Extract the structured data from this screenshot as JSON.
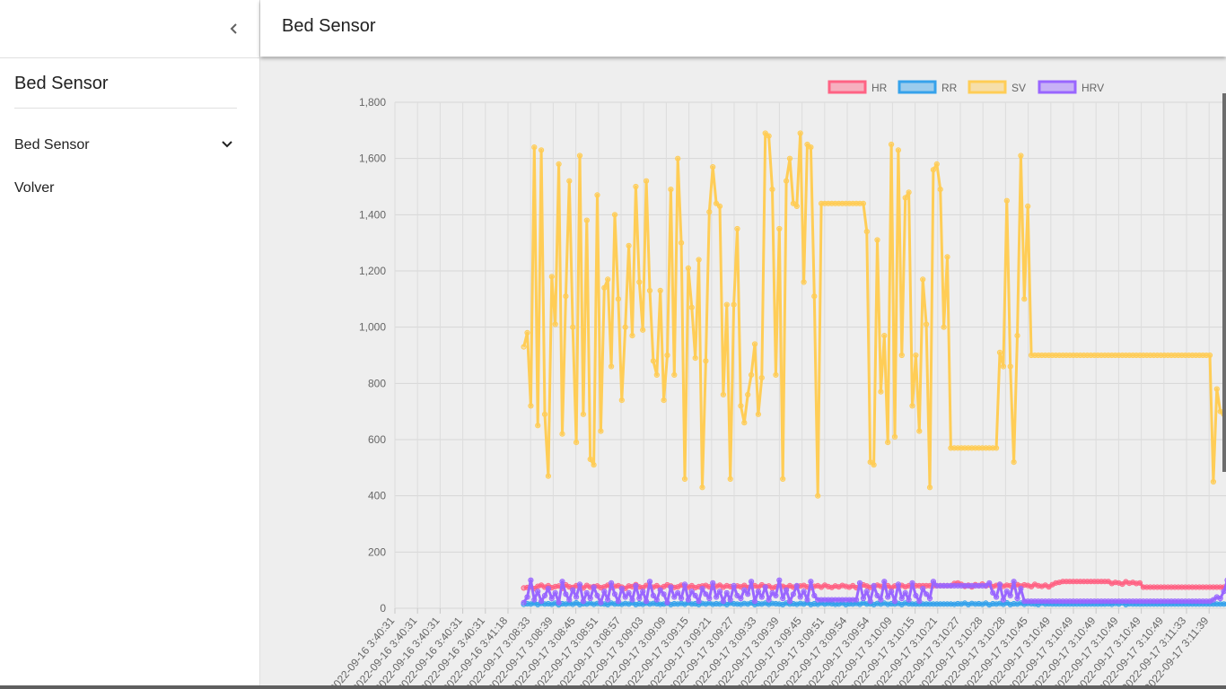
{
  "app": {
    "title": "Bed Sensor"
  },
  "sidebar": {
    "title": "Bed Sensor",
    "items": [
      {
        "label": "Bed Sensor",
        "expandable": true
      },
      {
        "label": "Volver",
        "expandable": false
      }
    ]
  },
  "icons": {
    "collapse": "chevron-left-icon",
    "expand": "chevron-down-icon"
  },
  "colors": {
    "hr": "#ff6384",
    "rr": "#36a2eb",
    "sv": "#ffcd56",
    "hrv": "#9966ff"
  },
  "chart_data": {
    "type": "line",
    "legend_position": "top",
    "grid": true,
    "ylim": [
      0,
      1800
    ],
    "y_ticks": [
      "0",
      "200",
      "400",
      "600",
      "800",
      "1,000",
      "1,200",
      "1,400",
      "1,600",
      "1,800"
    ],
    "x_tick_labels": [
      "2022-09-16 3:40:31",
      "2022-09-16 3:40:31",
      "2022-09-16 3:40:31",
      "2022-09-16 3:40:31",
      "2022-09-16 3:40:31",
      "2022-09-16 3:41:18",
      "2022-09-17 3:08:33",
      "2022-09-17 3:08:39",
      "2022-09-17 3:08:45",
      "2022-09-17 3:08:51",
      "2022-09-17 3:08:57",
      "2022-09-17 3:09:03",
      "2022-09-17 3:09:09",
      "2022-09-17 3:09:15",
      "2022-09-17 3:09:21",
      "2022-09-17 3:09:27",
      "2022-09-17 3:09:33",
      "2022-09-17 3:09:39",
      "2022-09-17 3:09:45",
      "2022-09-17 3:09:51",
      "2022-09-17 3:09:54",
      "2022-09-17 3:09:54",
      "2022-09-17 3:10:09",
      "2022-09-17 3:10:15",
      "2022-09-17 3:10:21",
      "2022-09-17 3:10:27",
      "2022-09-17 3:10:28",
      "2022-09-17 3:10:28",
      "2022-09-17 3:10:45",
      "2022-09-17 3:10:49",
      "2022-09-17 3:10:49",
      "2022-09-17 3:10:49",
      "2022-09-17 3:10:49",
      "2022-09-17 3:10:49",
      "2022-09-17 3:10:49",
      "2022-09-17 3:11:33",
      "2022-09-17 3:11:39"
    ],
    "series": [
      {
        "name": "HR",
        "color": "#ff6384",
        "values": [
          72,
          74,
          76,
          70,
          78,
          82,
          75,
          80,
          73,
          77,
          79,
          71,
          83,
          76,
          74,
          80,
          78,
          72,
          81,
          75,
          77,
          79,
          73,
          76,
          82,
          74,
          78,
          80,
          75,
          71,
          79,
          77,
          84,
          76,
          73,
          81,
          78,
          75,
          80,
          72,
          77,
          83,
          79,
          74,
          76,
          82,
          78,
          75,
          80,
          73,
          77,
          79,
          81,
          76,
          74,
          78,
          82,
          75,
          80,
          77,
          73,
          79,
          76,
          81,
          74,
          78,
          80,
          75,
          83,
          77,
          79,
          72,
          76,
          82,
          78,
          74,
          80,
          75,
          77,
          79,
          81,
          76,
          73,
          78,
          80,
          75,
          82,
          77,
          74,
          79,
          76,
          81,
          78,
          75,
          80,
          73,
          77,
          83,
          79,
          74,
          76,
          82,
          78,
          75,
          80,
          72,
          79,
          77,
          81,
          76,
          80,
          80,
          80,
          80,
          80,
          80,
          80,
          80,
          80,
          80,
          80,
          80,
          80,
          88,
          90,
          85,
          78,
          82,
          76,
          84,
          80,
          86,
          79,
          83,
          77,
          81,
          85,
          78,
          82,
          80,
          76,
          84,
          79,
          83,
          81,
          77,
          85,
          80,
          78,
          82,
          76,
          84,
          90,
          92,
          95,
          95,
          95,
          95,
          95,
          95,
          95,
          95,
          95,
          95,
          95,
          95,
          95,
          95,
          88,
          92,
          90,
          86,
          94,
          89,
          92,
          88,
          90,
          75,
          75,
          75,
          75,
          75,
          75,
          75,
          75,
          75,
          75,
          75,
          75,
          75,
          75,
          75,
          75,
          75,
          75,
          75,
          75,
          75,
          75,
          75,
          75,
          75,
          75,
          75,
          75,
          75,
          75,
          75,
          75,
          75,
          75,
          75,
          75,
          75,
          75,
          75,
          75,
          75,
          75,
          80,
          78,
          82,
          76,
          80,
          84,
          78
        ]
      },
      {
        "name": "RR",
        "color": "#36a2eb",
        "values": [
          14,
          16,
          15,
          18,
          13,
          17,
          15,
          16,
          14,
          18,
          12,
          16,
          15,
          17,
          14,
          19,
          13,
          16,
          15,
          18,
          14,
          17,
          16,
          15,
          13,
          18,
          15,
          16,
          14,
          17,
          15,
          19,
          13,
          16,
          14,
          18,
          15,
          17,
          16,
          14,
          15,
          18,
          13,
          16,
          15,
          17,
          14,
          19,
          15,
          16,
          13,
          17,
          15,
          18,
          14,
          16,
          15,
          17,
          13,
          18,
          16,
          15,
          14,
          17,
          15,
          19,
          13,
          16,
          15,
          18,
          14,
          17,
          16,
          15,
          13,
          18,
          15,
          16,
          14,
          17,
          15,
          19,
          13,
          16,
          14,
          18,
          15,
          17,
          16,
          14,
          15,
          18,
          13,
          16,
          15,
          17,
          14,
          19,
          15,
          16,
          13,
          17,
          15,
          18,
          14,
          16,
          15,
          17,
          13,
          18,
          16,
          15,
          15,
          15,
          15,
          15,
          15,
          15,
          15,
          15,
          15,
          15,
          15,
          14,
          16,
          15,
          18,
          13,
          17,
          15,
          16,
          14,
          18,
          12,
          16,
          15,
          17,
          14,
          19,
          13,
          16,
          15,
          18,
          14,
          17,
          16,
          15,
          13,
          18,
          15,
          16,
          15,
          15,
          15,
          15,
          15,
          15,
          15,
          15,
          15,
          15,
          15,
          15,
          15,
          15,
          15,
          15,
          16,
          14,
          17,
          15,
          19,
          13,
          16,
          15,
          15,
          15,
          15,
          15,
          15,
          15,
          15,
          15,
          15,
          15,
          15,
          15,
          15,
          15,
          15,
          15,
          15,
          15,
          15,
          15,
          15,
          15,
          15,
          15,
          15,
          15,
          15,
          15,
          15,
          15,
          15,
          15,
          15,
          15,
          15,
          15,
          15,
          15,
          15,
          15,
          15,
          15,
          15,
          15,
          14,
          16,
          15,
          17,
          16,
          15,
          18
        ]
      },
      {
        "name": "SV",
        "color": "#ffcd56",
        "values": [
          930,
          980,
          720,
          1640,
          650,
          1630,
          690,
          470,
          1180,
          1010,
          1580,
          620,
          1110,
          1520,
          1000,
          590,
          1610,
          690,
          1380,
          530,
          510,
          1470,
          630,
          1140,
          1170,
          860,
          1400,
          1100,
          740,
          1000,
          1290,
          970,
          1500,
          1160,
          990,
          1520,
          1130,
          880,
          830,
          1130,
          740,
          900,
          1490,
          830,
          1600,
          1300,
          460,
          1210,
          1070,
          890,
          1240,
          430,
          880,
          1410,
          1570,
          1440,
          1430,
          760,
          1080,
          460,
          1080,
          1350,
          720,
          660,
          760,
          830,
          940,
          690,
          820,
          1690,
          1680,
          1490,
          830,
          1350,
          460,
          1520,
          1600,
          1440,
          1430,
          1690,
          1160,
          1650,
          1640,
          1110,
          400,
          1440,
          1440,
          1440,
          1440,
          1440,
          1440,
          1440,
          1440,
          1440,
          1440,
          1440,
          1440,
          1440,
          1340,
          520,
          510,
          1310,
          770,
          970,
          590,
          1650,
          610,
          1630,
          900,
          1460,
          1480,
          720,
          900,
          630,
          1170,
          1010,
          430,
          1560,
          1580,
          1490,
          1000,
          1250,
          570,
          570,
          570,
          570,
          570,
          570,
          570,
          570,
          570,
          570,
          570,
          570,
          570,
          570,
          910,
          860,
          1450,
          860,
          520,
          970,
          1610,
          1100,
          1430,
          900,
          900,
          900,
          900,
          900,
          900,
          900,
          900,
          900,
          900,
          900,
          900,
          900,
          900,
          900,
          900,
          900,
          900,
          900,
          900,
          900,
          900,
          900,
          900,
          900,
          900,
          900,
          900,
          900,
          900,
          900,
          900,
          900,
          900,
          900,
          900,
          900,
          900,
          900,
          900,
          900,
          900,
          900,
          900,
          900,
          900,
          900,
          900,
          900,
          900,
          900,
          900,
          450,
          780,
          700,
          690,
          920,
          1250,
          920,
          500
        ]
      },
      {
        "name": "HRV",
        "color": "#9966ff",
        "values": [
          20,
          40,
          100,
          30,
          60,
          25,
          45,
          70,
          35,
          55,
          20,
          95,
          50,
          30,
          65,
          40,
          85,
          25,
          55,
          35,
          75,
          45,
          20,
          60,
          30,
          90,
          50,
          25,
          70,
          40,
          55,
          30,
          80,
          35,
          60,
          25,
          95,
          45,
          30,
          65,
          50,
          20,
          75,
          40,
          55,
          35,
          85,
          30,
          60,
          45,
          25,
          70,
          50,
          35,
          90,
          40,
          60,
          25,
          55,
          30,
          80,
          45,
          35,
          65,
          50,
          95,
          25,
          60,
          40,
          75,
          30,
          55,
          45,
          100,
          35,
          65,
          25,
          50,
          80,
          40,
          60,
          30,
          95,
          45,
          30,
          30,
          30,
          30,
          30,
          30,
          30,
          30,
          30,
          30,
          30,
          30,
          90,
          35,
          60,
          25,
          80,
          45,
          30,
          95,
          40,
          60,
          25,
          85,
          35,
          55,
          30,
          90,
          45,
          25,
          70,
          50,
          35,
          95,
          80,
          80,
          80,
          80,
          80,
          80,
          80,
          80,
          80,
          80,
          80,
          80,
          80,
          80,
          80,
          90,
          55,
          40,
          85,
          30,
          60,
          45,
          95,
          35,
          70,
          25,
          25,
          25,
          25,
          25,
          25,
          25,
          25,
          25,
          25,
          25,
          25,
          25,
          25,
          25,
          25,
          25,
          25,
          25,
          25,
          25,
          25,
          25,
          25,
          25,
          25,
          25,
          25,
          25,
          25,
          25,
          25,
          25,
          25,
          25,
          25,
          25,
          25,
          25,
          25,
          25,
          25,
          25,
          25,
          25,
          25,
          25,
          25,
          25,
          25,
          25,
          25,
          25,
          25,
          30,
          40,
          35,
          60,
          100,
          45,
          70,
          50
        ]
      }
    ]
  }
}
